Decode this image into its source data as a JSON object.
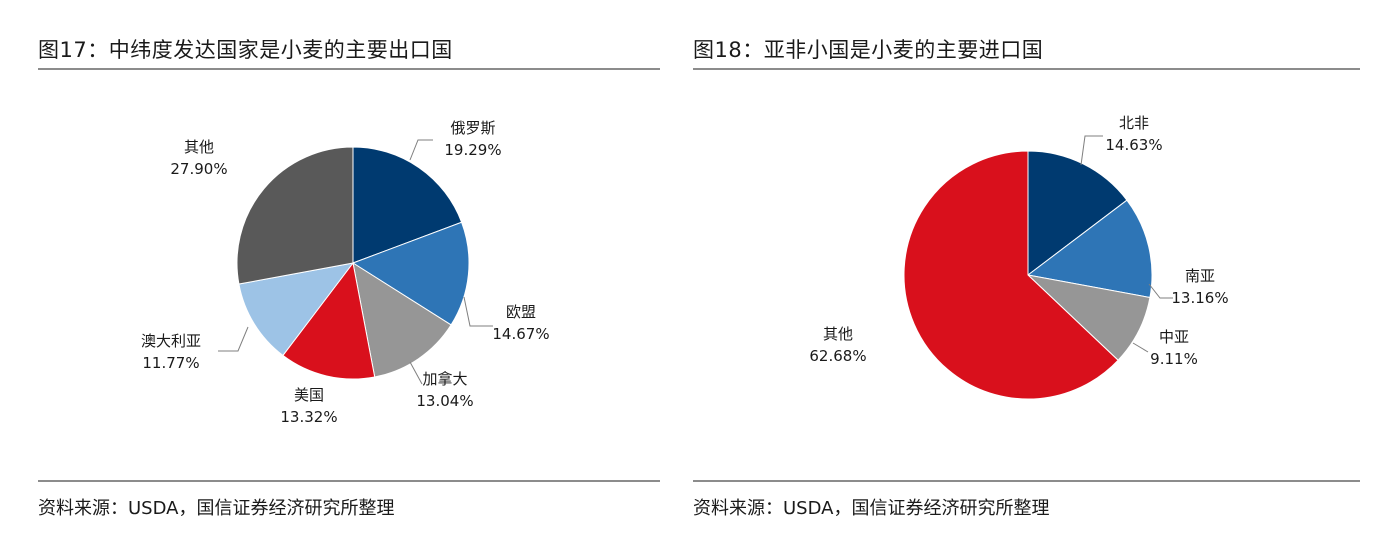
{
  "left": {
    "title": "图17：中纬度发达国家是小麦的主要出口国",
    "source": "资料来源：USDA，国信证券经济研究所整理"
  },
  "right": {
    "title": "图18：亚非小国是小麦的主要进口国",
    "source": "资料来源：USDA，国信证券经济研究所整理"
  },
  "chart_data": [
    {
      "type": "pie",
      "title": "图17：中纬度发达国家是小麦的主要出口国",
      "categories": [
        "俄罗斯",
        "欧盟",
        "加拿大",
        "美国",
        "澳大利亚",
        "其他"
      ],
      "values": [
        19.29,
        14.67,
        13.04,
        13.32,
        11.77,
        27.9
      ],
      "labels": [
        "19.29%",
        "14.67%",
        "13.04%",
        "13.32%",
        "11.77%",
        "27.90%"
      ],
      "colors": [
        "#003a70",
        "#2e75b6",
        "#969696",
        "#d9101c",
        "#9dc3e6",
        "#595959"
      ]
    },
    {
      "type": "pie",
      "title": "图18：亚非小国是小麦的主要进口国",
      "categories": [
        "北非",
        "南亚",
        "中亚",
        "其他"
      ],
      "values": [
        14.63,
        13.16,
        9.11,
        62.68
      ],
      "labels": [
        "14.63%",
        "13.16%",
        "9.11%",
        "62.68%"
      ],
      "colors": [
        "#003a70",
        "#2e75b6",
        "#969696",
        "#d9101c"
      ]
    }
  ]
}
